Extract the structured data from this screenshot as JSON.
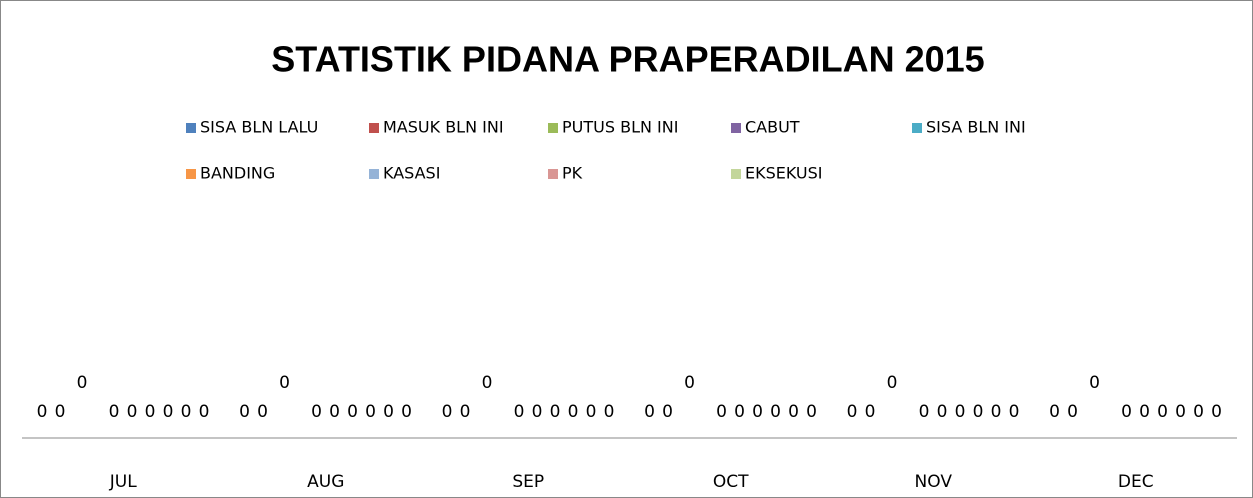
{
  "chart_data": {
    "type": "bar",
    "title": "STATISTIK PIDANA PRAPERADILAN 2015",
    "categories": [
      "JUL",
      "AUG",
      "SEP",
      "OCT",
      "NOV",
      "DEC"
    ],
    "series": [
      {
        "name": "SISA BLN LALU",
        "color": "#4F81BD",
        "values": [
          0,
          0,
          0,
          0,
          0,
          0
        ]
      },
      {
        "name": "MASUK BLN INI",
        "color": "#C0504D",
        "values": [
          0,
          0,
          0,
          0,
          0,
          0
        ]
      },
      {
        "name": "PUTUS BLN INI",
        "color": "#9BBB59",
        "values": [
          0,
          0,
          0,
          0,
          0,
          0
        ]
      },
      {
        "name": "CABUT",
        "color": "#8064A2",
        "values": [
          0,
          0,
          0,
          0,
          0,
          0
        ]
      },
      {
        "name": "SISA BLN INI",
        "color": "#4BACC6",
        "values": [
          0,
          0,
          0,
          0,
          0,
          0
        ]
      },
      {
        "name": "BANDING",
        "color": "#F79646",
        "values": [
          0,
          0,
          0,
          0,
          0,
          0
        ]
      },
      {
        "name": "KASASI",
        "color": "#95B3D7",
        "values": [
          0,
          0,
          0,
          0,
          0,
          0
        ]
      },
      {
        "name": "PK",
        "color": "#D99694",
        "values": [
          0,
          0,
          0,
          0,
          0,
          0
        ]
      },
      {
        "name": "EKSEKUSI",
        "color": "#C3D69B",
        "values": [
          0,
          0,
          0,
          0,
          0,
          0
        ]
      }
    ],
    "legend": "top"
  }
}
